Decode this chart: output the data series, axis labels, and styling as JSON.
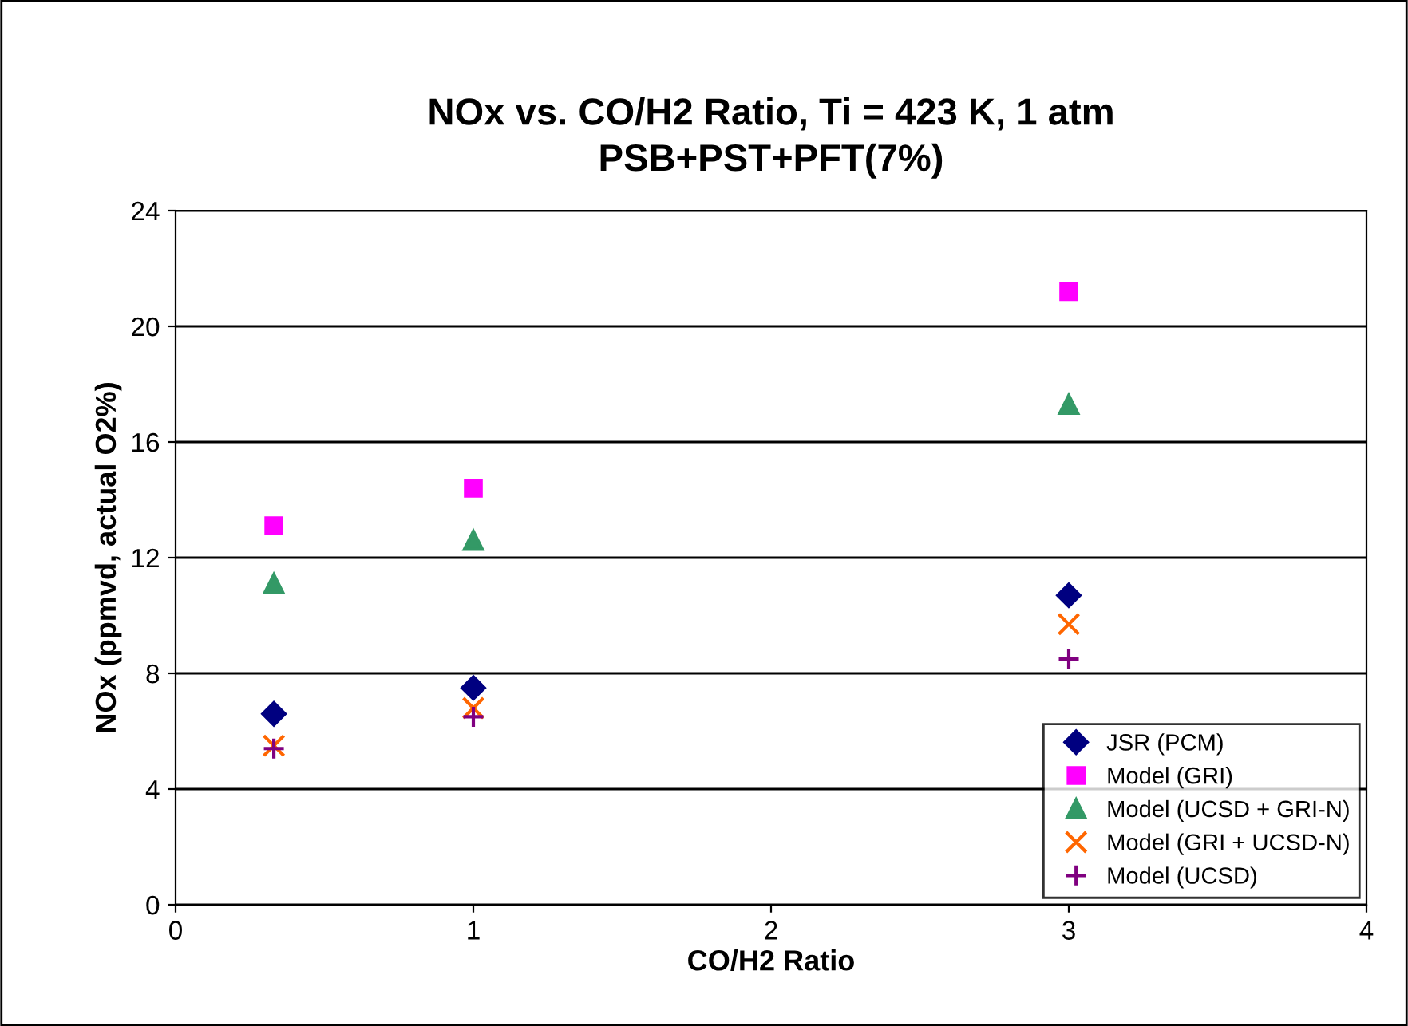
{
  "chart_data": {
    "type": "scatter",
    "title": "NOx vs. CO/H2 Ratio, Ti = 423 K, 1 atm\nPSB+PST+PFT(7%)",
    "xlabel": "CO/H2 Ratio",
    "ylabel": "NOx (ppmvd, actual O2%)",
    "xlim": [
      0,
      4
    ],
    "xticks": [
      0,
      1,
      2,
      3,
      4
    ],
    "ylim": [
      0,
      24
    ],
    "yticks": [
      0,
      4,
      8,
      12,
      16,
      20,
      24
    ],
    "grid": "y",
    "legend": "bottom right",
    "series": [
      {
        "name": "JSR (PCM)",
        "color": "#000080",
        "marker": "diamond",
        "x": [
          0.33,
          1,
          3
        ],
        "values": [
          6.6,
          7.5,
          10.7
        ]
      },
      {
        "name": "Model (GRI)",
        "color": "#ff00ff",
        "marker": "square",
        "x": [
          0.33,
          1,
          3
        ],
        "values": [
          13.1,
          14.4,
          21.2
        ]
      },
      {
        "name": "Model (UCSD + GRI-N)",
        "color": "#339966",
        "marker": "triangle",
        "x": [
          0.33,
          1,
          3
        ],
        "values": [
          11.1,
          12.6,
          17.3
        ]
      },
      {
        "name": "Model (GRI + UCSD-N)",
        "color": "#ff6600",
        "marker": "cross",
        "x": [
          0.33,
          1,
          3
        ],
        "values": [
          5.5,
          6.8,
          9.7
        ]
      },
      {
        "name": "Model (UCSD)",
        "color": "#800080",
        "marker": "plus",
        "x": [
          0.33,
          1,
          3
        ],
        "values": [
          5.4,
          6.5,
          8.5
        ]
      }
    ]
  }
}
